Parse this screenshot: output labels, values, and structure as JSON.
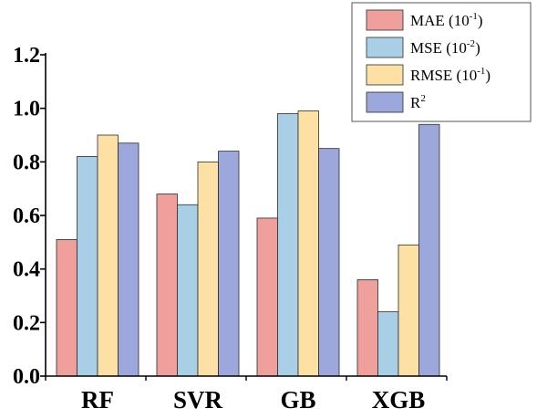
{
  "chart_data": {
    "type": "bar",
    "categories": [
      "RF",
      "SVR",
      "GB",
      "XGB"
    ],
    "series": [
      {
        "name": "MAE",
        "unit_exp": "-1",
        "color": "#f0a09c",
        "values": [
          0.51,
          0.68,
          0.59,
          0.36
        ]
      },
      {
        "name": "MSE",
        "unit_exp": "-2",
        "color": "#a9cfe6",
        "values": [
          0.82,
          0.64,
          0.98,
          0.24
        ]
      },
      {
        "name": "RMSE",
        "unit_exp": "-1",
        "color": "#fde0a3",
        "values": [
          0.9,
          0.8,
          0.99,
          0.49
        ]
      },
      {
        "name": "R",
        "sup": "2",
        "color": "#9ca7dc",
        "values": [
          0.87,
          0.84,
          0.85,
          0.94
        ]
      }
    ],
    "ylim": [
      0,
      1.2
    ],
    "yticks": [
      "0.0",
      "0.2",
      "0.4",
      "0.6",
      "0.8",
      "1.0",
      "1.2"
    ],
    "legend_position": "top-right",
    "title": "",
    "xlabel": "",
    "ylabel": ""
  }
}
